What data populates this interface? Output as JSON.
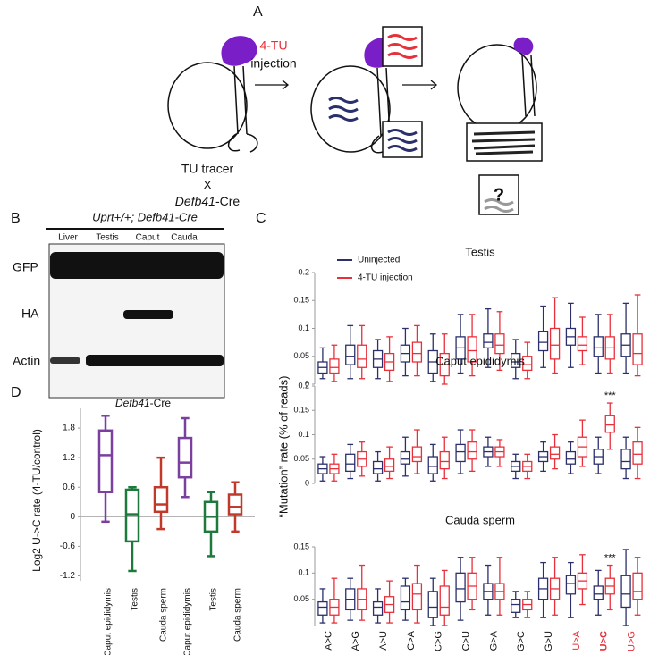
{
  "panel_a": {
    "label": "A",
    "injection_agent": "4-TU",
    "injection_label": "injection",
    "cross_top": "TU tracer",
    "cross_x": "X",
    "cross_bottom_italic": "Defb41",
    "cross_bottom_rest": "-Cre",
    "question": "?"
  },
  "panel_b": {
    "label": "B",
    "header": "Uprt+/+; Defb41-Cre",
    "lanes": [
      "Liver",
      "Testis",
      "Caput",
      "Cauda"
    ],
    "rows": [
      "GFP",
      "HA",
      "Actin"
    ]
  },
  "panel_c": {
    "label": "C",
    "y_label": "“Mutation” rate (% of reads)"
  },
  "panel_d": {
    "label": "D",
    "title_italic": "Defb41",
    "title_rest": "-Cre",
    "y_label": "Log2 U->C rate (4-TU/control)"
  },
  "chart_data": [
    {
      "type": "box",
      "title": "Testis",
      "ylim": [
        0,
        0.2
      ],
      "yticks": [
        0,
        0.05,
        0.1,
        0.15,
        0.2
      ],
      "series": [
        {
          "name": "Uninjected",
          "color": "#2b2f6b",
          "values": [
            [
              0.01,
              0.02,
              0.03,
              0.04,
              0.065
            ],
            [
              0.01,
              0.035,
              0.05,
              0.07,
              0.105
            ],
            [
              0.01,
              0.03,
              0.045,
              0.06,
              0.08
            ],
            [
              0.015,
              0.04,
              0.055,
              0.07,
              0.1
            ],
            [
              0.005,
              0.02,
              0.04,
              0.06,
              0.09
            ],
            [
              0.02,
              0.045,
              0.065,
              0.085,
              0.125
            ],
            [
              0.03,
              0.065,
              0.075,
              0.09,
              0.135
            ],
            [
              0.01,
              0.03,
              0.04,
              0.055,
              0.08
            ],
            [
              0.03,
              0.06,
              0.075,
              0.095,
              0.14
            ],
            [
              0.03,
              0.07,
              0.085,
              0.1,
              0.145
            ],
            [
              0.02,
              0.05,
              0.065,
              0.085,
              0.125
            ],
            [
              0.02,
              0.05,
              0.07,
              0.09,
              0.145
            ]
          ]
        },
        {
          "name": "4-TU injection",
          "color": "#e8303a",
          "values": [
            [
              0.005,
              0.02,
              0.03,
              0.045,
              0.07
            ],
            [
              0.01,
              0.03,
              0.045,
              0.07,
              0.105
            ],
            [
              0.005,
              0.025,
              0.04,
              0.055,
              0.085
            ],
            [
              0.015,
              0.04,
              0.055,
              0.075,
              0.105
            ],
            [
              0,
              0.015,
              0.035,
              0.055,
              0.09
            ],
            [
              0.015,
              0.04,
              0.06,
              0.085,
              0.125
            ],
            [
              0.025,
              0.055,
              0.07,
              0.09,
              0.13
            ],
            [
              0.01,
              0.025,
              0.035,
              0.05,
              0.075
            ],
            [
              0.02,
              0.045,
              0.07,
              0.1,
              0.155
            ],
            [
              0.035,
              0.06,
              0.07,
              0.085,
              0.12
            ],
            [
              0.02,
              0.045,
              0.065,
              0.085,
              0.125
            ],
            [
              0.015,
              0.035,
              0.055,
              0.09,
              0.16
            ]
          ]
        }
      ]
    },
    {
      "type": "box",
      "title": "Caput epididymis",
      "ylim": [
        0,
        0.2
      ],
      "yticks": [
        0,
        0.05,
        0.1,
        0.15,
        0.2
      ],
      "annotations": [
        {
          "text": "***",
          "category": 10,
          "series": 1
        }
      ],
      "series": [
        {
          "color": "#2b2f6b",
          "values": [
            [
              0.005,
              0.02,
              0.03,
              0.04,
              0.055
            ],
            [
              0.01,
              0.025,
              0.04,
              0.06,
              0.08
            ],
            [
              0.005,
              0.02,
              0.03,
              0.045,
              0.065
            ],
            [
              0.015,
              0.04,
              0.05,
              0.065,
              0.095
            ],
            [
              0.005,
              0.02,
              0.035,
              0.055,
              0.08
            ],
            [
              0.02,
              0.045,
              0.065,
              0.08,
              0.11
            ],
            [
              0.035,
              0.055,
              0.065,
              0.075,
              0.095
            ],
            [
              0.01,
              0.025,
              0.035,
              0.045,
              0.06
            ],
            [
              0.025,
              0.045,
              0.055,
              0.065,
              0.085
            ],
            [
              0.02,
              0.04,
              0.05,
              0.065,
              0.085
            ],
            [
              0.02,
              0.04,
              0.055,
              0.07,
              0.095
            ],
            [
              0.01,
              0.03,
              0.045,
              0.07,
              0.095
            ]
          ]
        },
        {
          "color": "#e8303a",
          "values": [
            [
              0.005,
              0.02,
              0.03,
              0.04,
              0.06
            ],
            [
              0.015,
              0.035,
              0.05,
              0.065,
              0.085
            ],
            [
              0.01,
              0.025,
              0.035,
              0.05,
              0.075
            ],
            [
              0.02,
              0.045,
              0.055,
              0.075,
              0.11
            ],
            [
              0.01,
              0.03,
              0.045,
              0.065,
              0.095
            ],
            [
              0.025,
              0.05,
              0.065,
              0.085,
              0.11
            ],
            [
              0.035,
              0.055,
              0.065,
              0.075,
              0.09
            ],
            [
              0.01,
              0.025,
              0.035,
              0.045,
              0.06
            ],
            [
              0.03,
              0.05,
              0.06,
              0.075,
              0.1
            ],
            [
              0.035,
              0.055,
              0.075,
              0.095,
              0.13
            ],
            [
              0.07,
              0.105,
              0.12,
              0.14,
              0.165
            ],
            [
              0.01,
              0.04,
              0.06,
              0.085,
              0.115
            ]
          ]
        }
      ]
    },
    {
      "type": "box",
      "title": "Cauda sperm",
      "ylim": [
        0,
        0.15
      ],
      "yticks": [
        0.05,
        0.1,
        0.15
      ],
      "categories": [
        "A>C",
        "A>G",
        "A>U",
        "C>A",
        "C>G",
        "C>U",
        "G>A",
        "G>C",
        "G>U",
        "U>A",
        "U>C",
        "U>G"
      ],
      "category_colors": [
        "#111",
        "#111",
        "#111",
        "#111",
        "#111",
        "#111",
        "#111",
        "#111",
        "#111",
        "#e8303a",
        "#e8303a",
        "#e8303a"
      ],
      "category_bold": [
        false,
        false,
        false,
        false,
        false,
        false,
        false,
        false,
        false,
        false,
        true,
        false
      ],
      "annotations": [
        {
          "text": "***",
          "category": 10,
          "series": 1
        }
      ],
      "series": [
        {
          "color": "#2b2f6b",
          "values": [
            [
              0.005,
              0.02,
              0.035,
              0.045,
              0.07
            ],
            [
              0.01,
              0.03,
              0.05,
              0.07,
              0.09
            ],
            [
              0.005,
              0.02,
              0.035,
              0.045,
              0.07
            ],
            [
              0.01,
              0.03,
              0.045,
              0.075,
              0.09
            ],
            [
              0,
              0.015,
              0.035,
              0.065,
              0.09
            ],
            [
              0.01,
              0.045,
              0.07,
              0.1,
              0.13
            ],
            [
              0.02,
              0.05,
              0.065,
              0.08,
              0.115
            ],
            [
              0.015,
              0.025,
              0.04,
              0.05,
              0.065
            ],
            [
              0.015,
              0.05,
              0.07,
              0.09,
              0.12
            ],
            [
              0.015,
              0.06,
              0.08,
              0.095,
              0.12
            ],
            [
              0.02,
              0.05,
              0.06,
              0.075,
              0.105
            ],
            [
              0,
              0.035,
              0.06,
              0.095,
              0.145
            ]
          ]
        },
        {
          "color": "#e8303a",
          "values": [
            [
              0.005,
              0.02,
              0.035,
              0.05,
              0.09
            ],
            [
              0.01,
              0.03,
              0.05,
              0.07,
              0.115
            ],
            [
              0.005,
              0.025,
              0.04,
              0.055,
              0.085
            ],
            [
              0.005,
              0.03,
              0.06,
              0.08,
              0.115
            ],
            [
              0,
              0.02,
              0.035,
              0.075,
              0.105
            ],
            [
              0.03,
              0.05,
              0.075,
              0.1,
              0.13
            ],
            [
              0.02,
              0.05,
              0.065,
              0.08,
              0.13
            ],
            [
              0.015,
              0.03,
              0.04,
              0.05,
              0.065
            ],
            [
              0.02,
              0.05,
              0.07,
              0.09,
              0.13
            ],
            [
              0.04,
              0.07,
              0.085,
              0.1,
              0.135
            ],
            [
              0.03,
              0.06,
              0.075,
              0.09,
              0.115
            ],
            [
              0.02,
              0.05,
              0.065,
              0.1,
              0.13
            ]
          ]
        }
      ]
    },
    {
      "type": "box",
      "ylim": [
        -1.3,
        2.2
      ],
      "yticks": [
        -1.2,
        -0.6,
        0,
        0.6,
        1.2,
        1.8
      ],
      "categories": [
        "Caput epididymis",
        "Testis",
        "Cauda sperm",
        "Caput epididymis",
        "Testis",
        "Cauda sperm"
      ],
      "colors": [
        "#7b3fa0",
        "#1e7a3c",
        "#c0392b",
        "#7b3fa0",
        "#1e7a3c",
        "#c0392b"
      ],
      "values": [
        [
          -0.1,
          0.5,
          1.25,
          1.75,
          2.05
        ],
        [
          -1.1,
          -0.5,
          0.05,
          0.55,
          0.6
        ],
        [
          -0.25,
          0.1,
          0.25,
          0.6,
          1.2
        ],
        [
          0.4,
          0.8,
          1.1,
          1.6,
          2.0
        ],
        [
          -0.8,
          -0.3,
          0,
          0.3,
          0.5
        ],
        [
          -0.3,
          0.05,
          0.2,
          0.45,
          0.7
        ]
      ]
    }
  ]
}
